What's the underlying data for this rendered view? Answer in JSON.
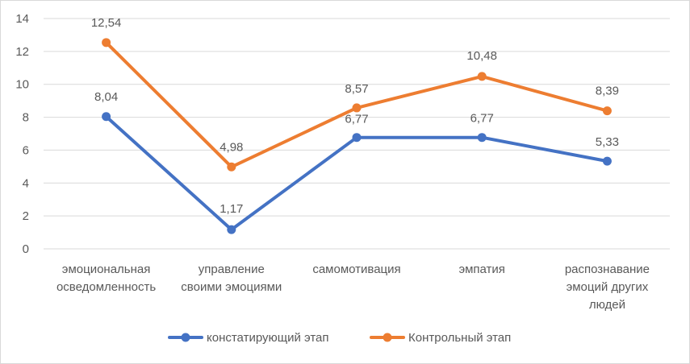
{
  "chart_data": {
    "type": "line",
    "categories": [
      [
        "эмоциональная",
        "осведомленность"
      ],
      [
        "управление",
        "своими эмоциями"
      ],
      [
        "самомотивация"
      ],
      [
        "эмпатия"
      ],
      [
        "распознавание",
        "эмоций других",
        "людей"
      ]
    ],
    "series": [
      {
        "name": "констатирующий этап",
        "color": "#4472C4",
        "values": [
          8.04,
          1.17,
          6.77,
          6.77,
          5.33
        ],
        "labels": [
          "8,04",
          "1,17",
          "6,77",
          "6,77",
          "5,33"
        ]
      },
      {
        "name": "Контрольный этап",
        "color": "#ED7D31",
        "values": [
          12.54,
          4.98,
          8.57,
          10.48,
          8.39
        ],
        "labels": [
          "12,54",
          "4,98",
          "8,57",
          "10,48",
          "8,39"
        ]
      }
    ],
    "ylim": [
      0,
      14
    ],
    "yticks": [
      "0",
      "2",
      "4",
      "6",
      "8",
      "10",
      "12",
      "14"
    ],
    "grid": true,
    "legend": "bottom"
  }
}
